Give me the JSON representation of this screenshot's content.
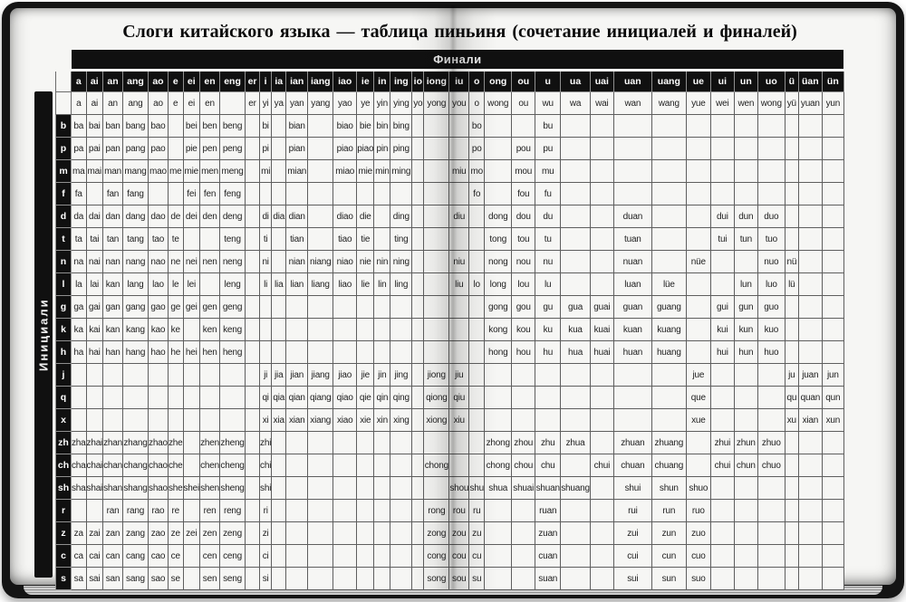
{
  "title": "Слоги китайского языка — таблица пиньиня (сочетание инициалей и финалей)",
  "finals_label": "Финали",
  "initials_label": "Инициали",
  "colors": {
    "header_bg": "#101010",
    "header_text": "#ffffff",
    "page_bg": "#f6f6f4",
    "cell_text": "#1e1e1e"
  },
  "finals": [
    "a",
    "ai",
    "an",
    "ang",
    "ao",
    "e",
    "ei",
    "en",
    "eng",
    "er",
    "i",
    "ia",
    "ian",
    "iang",
    "iao",
    "ie",
    "in",
    "ing",
    "io",
    "iong",
    "iu",
    "o",
    "ong",
    "ou",
    "u",
    "ua",
    "uai",
    "uan",
    "uang",
    "ue",
    "ui",
    "un",
    "uo",
    "ü",
    "üan",
    "ün"
  ],
  "initials": [
    "",
    "b",
    "p",
    "m",
    "f",
    "d",
    "t",
    "n",
    "l",
    "g",
    "k",
    "h",
    "j",
    "q",
    "x",
    "zh",
    "ch",
    "sh",
    "r",
    "z",
    "c",
    "s"
  ],
  "grid": [
    [
      "a",
      "ai",
      "an",
      "ang",
      "ao",
      "e",
      "ei",
      "en",
      "",
      "er",
      "yi",
      "ya",
      "yan",
      "yang",
      "yao",
      "ye",
      "yin",
      "ying",
      "yo",
      "yong",
      "you",
      "o",
      "wong",
      "ou",
      "wu",
      "wa",
      "wai",
      "wan",
      "wang",
      "yue",
      "wei",
      "wen",
      "wong",
      "yü",
      "yuan",
      "yun"
    ],
    [
      "ba",
      "bai",
      "ban",
      "bang",
      "bao",
      "",
      "bei",
      "ben",
      "beng",
      "",
      "bi",
      "",
      "bian",
      "",
      "biao",
      "bie",
      "bin",
      "bing",
      "",
      "",
      "",
      "bo",
      "",
      "",
      "bu",
      "",
      "",
      "",
      "",
      "",
      "",
      "",
      "",
      "",
      "",
      ""
    ],
    [
      "pa",
      "pai",
      "pan",
      "pang",
      "pao",
      "",
      "pie",
      "pen",
      "peng",
      "",
      "pi",
      "",
      "pian",
      "",
      "piao",
      "piao",
      "pin",
      "ping",
      "",
      "",
      "",
      "po",
      "",
      "pou",
      "pu",
      "",
      "",
      "",
      "",
      "",
      "",
      "",
      "",
      "",
      "",
      ""
    ],
    [
      "ma",
      "mai",
      "man",
      "mang",
      "mao",
      "me",
      "mie",
      "men",
      "meng",
      "",
      "mi",
      "",
      "mian",
      "",
      "miao",
      "mie",
      "min",
      "ming",
      "",
      "",
      "miu",
      "mo",
      "",
      "mou",
      "mu",
      "",
      "",
      "",
      "",
      "",
      "",
      "",
      "",
      "",
      "",
      ""
    ],
    [
      "fa",
      "",
      "fan",
      "fang",
      "",
      "",
      "fei",
      "fen",
      "feng",
      "",
      "",
      "",
      "",
      "",
      "",
      "",
      "",
      "",
      "",
      "",
      "",
      "fo",
      "",
      "fou",
      "fu",
      "",
      "",
      "",
      "",
      "",
      "",
      "",
      "",
      "",
      "",
      ""
    ],
    [
      "da",
      "dai",
      "dan",
      "dang",
      "dao",
      "de",
      "dei",
      "den",
      "deng",
      "",
      "di",
      "dia",
      "dian",
      "",
      "diao",
      "die",
      "",
      "ding",
      "",
      "",
      "diu",
      "",
      "dong",
      "dou",
      "du",
      "",
      "",
      "duan",
      "",
      "",
      "dui",
      "dun",
      "duo",
      "",
      "",
      ""
    ],
    [
      "ta",
      "tai",
      "tan",
      "tang",
      "tao",
      "te",
      "",
      "",
      "teng",
      "",
      "ti",
      "",
      "tian",
      "",
      "tiao",
      "tie",
      "",
      "ting",
      "",
      "",
      "",
      "",
      "tong",
      "tou",
      "tu",
      "",
      "",
      "tuan",
      "",
      "",
      "tui",
      "tun",
      "tuo",
      "",
      "",
      ""
    ],
    [
      "na",
      "nai",
      "nan",
      "nang",
      "nao",
      "ne",
      "nei",
      "nen",
      "neng",
      "",
      "ni",
      "",
      "nian",
      "niang",
      "niao",
      "nie",
      "nin",
      "ning",
      "",
      "",
      "niu",
      "",
      "nong",
      "nou",
      "nu",
      "",
      "",
      "nuan",
      "",
      "nüe",
      "",
      "",
      "nuo",
      "nü",
      "",
      ""
    ],
    [
      "la",
      "lai",
      "kan",
      "lang",
      "lao",
      "le",
      "lei",
      "",
      "leng",
      "",
      "li",
      "lia",
      "lian",
      "liang",
      "liao",
      "lie",
      "lin",
      "ling",
      "",
      "",
      "liu",
      "lo",
      "long",
      "lou",
      "lu",
      "",
      "",
      "luan",
      "lüe",
      "",
      "",
      "lun",
      "luo",
      "lü",
      "",
      ""
    ],
    [
      "ga",
      "gai",
      "gan",
      "gang",
      "gao",
      "ge",
      "gei",
      "gen",
      "geng",
      "",
      "",
      "",
      "",
      "",
      "",
      "",
      "",
      "",
      "",
      "",
      "",
      "",
      "gong",
      "gou",
      "gu",
      "gua",
      "guai",
      "guan",
      "guang",
      "",
      "gui",
      "gun",
      "guo",
      "",
      "",
      ""
    ],
    [
      "ka",
      "kai",
      "kan",
      "kang",
      "kao",
      "ke",
      "",
      "ken",
      "keng",
      "",
      "",
      "",
      "",
      "",
      "",
      "",
      "",
      "",
      "",
      "",
      "",
      "",
      "kong",
      "kou",
      "ku",
      "kua",
      "kuai",
      "kuan",
      "kuang",
      "",
      "kui",
      "kun",
      "kuo",
      "",
      "",
      ""
    ],
    [
      "ha",
      "hai",
      "han",
      "hang",
      "hao",
      "he",
      "hei",
      "hen",
      "heng",
      "",
      "",
      "",
      "",
      "",
      "",
      "",
      "",
      "",
      "",
      "",
      "",
      "",
      "hong",
      "hou",
      "hu",
      "hua",
      "huai",
      "huan",
      "huang",
      "",
      "hui",
      "hun",
      "huo",
      "",
      "",
      ""
    ],
    [
      "",
      "",
      "",
      "",
      "",
      "",
      "",
      "",
      "",
      "",
      "ji",
      "jia",
      "jian",
      "jiang",
      "jiao",
      "jie",
      "jin",
      "jing",
      "",
      "jiong",
      "jiu",
      "",
      "",
      "",
      "",
      "",
      "",
      "",
      "",
      "jue",
      "",
      "",
      "",
      "ju",
      "juan",
      "jun"
    ],
    [
      "",
      "",
      "",
      "",
      "",
      "",
      "",
      "",
      "",
      "",
      "qi",
      "qia",
      "qian",
      "qiang",
      "qiao",
      "qie",
      "qin",
      "qing",
      "",
      "qiong",
      "qiu",
      "",
      "",
      "",
      "",
      "",
      "",
      "",
      "",
      "que",
      "",
      "",
      "",
      "qu",
      "quan",
      "qun"
    ],
    [
      "",
      "",
      "",
      "",
      "",
      "",
      "",
      "",
      "",
      "",
      "xi",
      "xia",
      "xian",
      "xiang",
      "xiao",
      "xie",
      "xin",
      "xing",
      "",
      "xiong",
      "xiu",
      "",
      "",
      "",
      "",
      "",
      "",
      "",
      "",
      "xue",
      "",
      "",
      "",
      "xu",
      "xian",
      "xun"
    ],
    [
      "zha",
      "zhai",
      "zhan",
      "zhang",
      "zhao",
      "zhe",
      "",
      "zhen",
      "zheng",
      "",
      "zhi",
      "",
      "",
      "",
      "",
      "",
      "",
      "",
      "",
      "",
      "",
      "",
      "zhong",
      "zhou",
      "zhu",
      "zhua",
      "",
      "zhuan",
      "zhuang",
      "",
      "zhui",
      "zhun",
      "zhuo",
      "",
      "",
      ""
    ],
    [
      "cha",
      "chai",
      "chan",
      "chang",
      "chao",
      "che",
      "",
      "chen",
      "cheng",
      "",
      "chi",
      "",
      "",
      "",
      "",
      "",
      "",
      "",
      "",
      "chong",
      "",
      "",
      "chong",
      "chou",
      "chu",
      "",
      "chui",
      "chuan",
      "chuang",
      "",
      "chui",
      "chun",
      "chuo",
      "",
      "",
      ""
    ],
    [
      "sha",
      "shai",
      "shan",
      "shang",
      "shao",
      "she",
      "shei",
      "shen",
      "sheng",
      "",
      "shi",
      "",
      "",
      "",
      "",
      "",
      "",
      "",
      "",
      "",
      "shou",
      "shu",
      "shua",
      "shuai",
      "shuan",
      "shuang",
      "",
      "shui",
      "shun",
      "shuo",
      "",
      "",
      "",
      "",
      "",
      ""
    ],
    [
      "",
      "",
      "ran",
      "rang",
      "rao",
      "re",
      "",
      "ren",
      "reng",
      "",
      "ri",
      "",
      "",
      "",
      "",
      "",
      "",
      "",
      "",
      "rong",
      "rou",
      "ru",
      "",
      "",
      "ruan",
      "",
      "",
      "rui",
      "run",
      "ruo",
      "",
      "",
      "",
      "",
      "",
      ""
    ],
    [
      "za",
      "zai",
      "zan",
      "zang",
      "zao",
      "ze",
      "zei",
      "zen",
      "zeng",
      "",
      "zi",
      "",
      "",
      "",
      "",
      "",
      "",
      "",
      "",
      "zong",
      "zou",
      "zu",
      "",
      "",
      "zuan",
      "",
      "",
      "zui",
      "zun",
      "zuo",
      "",
      "",
      "",
      "",
      "",
      ""
    ],
    [
      "ca",
      "cai",
      "can",
      "cang",
      "cao",
      "ce",
      "",
      "cen",
      "ceng",
      "",
      "ci",
      "",
      "",
      "",
      "",
      "",
      "",
      "",
      "",
      "cong",
      "cou",
      "cu",
      "",
      "",
      "cuan",
      "",
      "",
      "cui",
      "cun",
      "cuo",
      "",
      "",
      "",
      "",
      "",
      ""
    ],
    [
      "sa",
      "sai",
      "san",
      "sang",
      "sao",
      "se",
      "",
      "sen",
      "seng",
      "",
      "si",
      "",
      "",
      "",
      "",
      "",
      "",
      "",
      "",
      "song",
      "sou",
      "su",
      "",
      "",
      "suan",
      "",
      "",
      "sui",
      "sun",
      "suo",
      "",
      "",
      "",
      "",
      "",
      ""
    ]
  ]
}
